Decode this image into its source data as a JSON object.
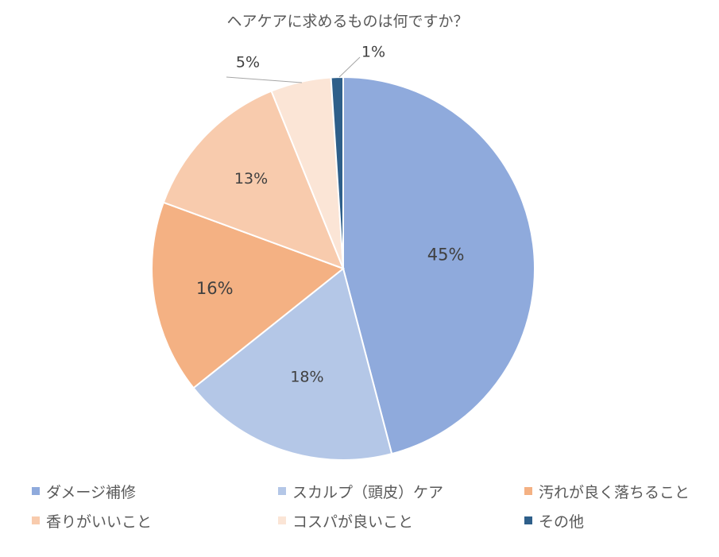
{
  "chart_data": {
    "type": "pie",
    "title": "ヘアケアに求めるものは何ですか？",
    "slices": [
      {
        "label": "ダメージ補修",
        "value": 45,
        "display": "45%",
        "color": "#8faadc"
      },
      {
        "label": "スカルプ（頭皮）ケア",
        "value": 18,
        "display": "18%",
        "color": "#b4c7e7"
      },
      {
        "label": "汚れが良く落ちること",
        "value": 16,
        "display": "16%",
        "color": "#f4b183"
      },
      {
        "label": "香りがいいこと",
        "value": 13,
        "display": "13%",
        "color": "#f8cbad"
      },
      {
        "label": "コスパが良いこと",
        "value": 5,
        "display": "5%",
        "color": "#fbe5d6"
      },
      {
        "label": "その他",
        "value": 1,
        "display": "1%",
        "color": "#2e5f8a"
      }
    ],
    "legend_position": "bottom"
  }
}
